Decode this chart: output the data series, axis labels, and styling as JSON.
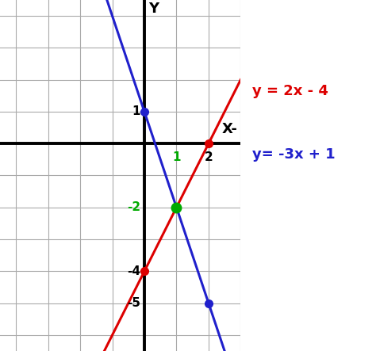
{
  "title": "",
  "xlabel": "X-",
  "ylabel": "Y",
  "xlim": [
    -4.5,
    3.0
  ],
  "ylim": [
    -6.5,
    4.5
  ],
  "line1_label": "y = 2x - 4",
  "line1_color": "#dd0000",
  "line1_slope": 2,
  "line1_intercept": -4,
  "line2_label": "y= -3x + 1",
  "line2_color": "#2020cc",
  "line2_slope": -3,
  "line2_intercept": 1,
  "intersection": [
    1,
    -2
  ],
  "intersection_color": "#00aa00",
  "line1_points": [
    [
      0,
      -4
    ],
    [
      2,
      0
    ]
  ],
  "line2_points": [
    [
      0,
      1
    ],
    [
      2,
      -5
    ]
  ],
  "bg_color": "#ffffff",
  "axis_color": "#000000",
  "grid_color": "#aaaaaa",
  "label_color_red": "#dd0000",
  "label_color_blue": "#2020cc",
  "label_color_green": "#00aa00",
  "figsize": [
    4.74,
    4.43
  ],
  "dpi": 100
}
